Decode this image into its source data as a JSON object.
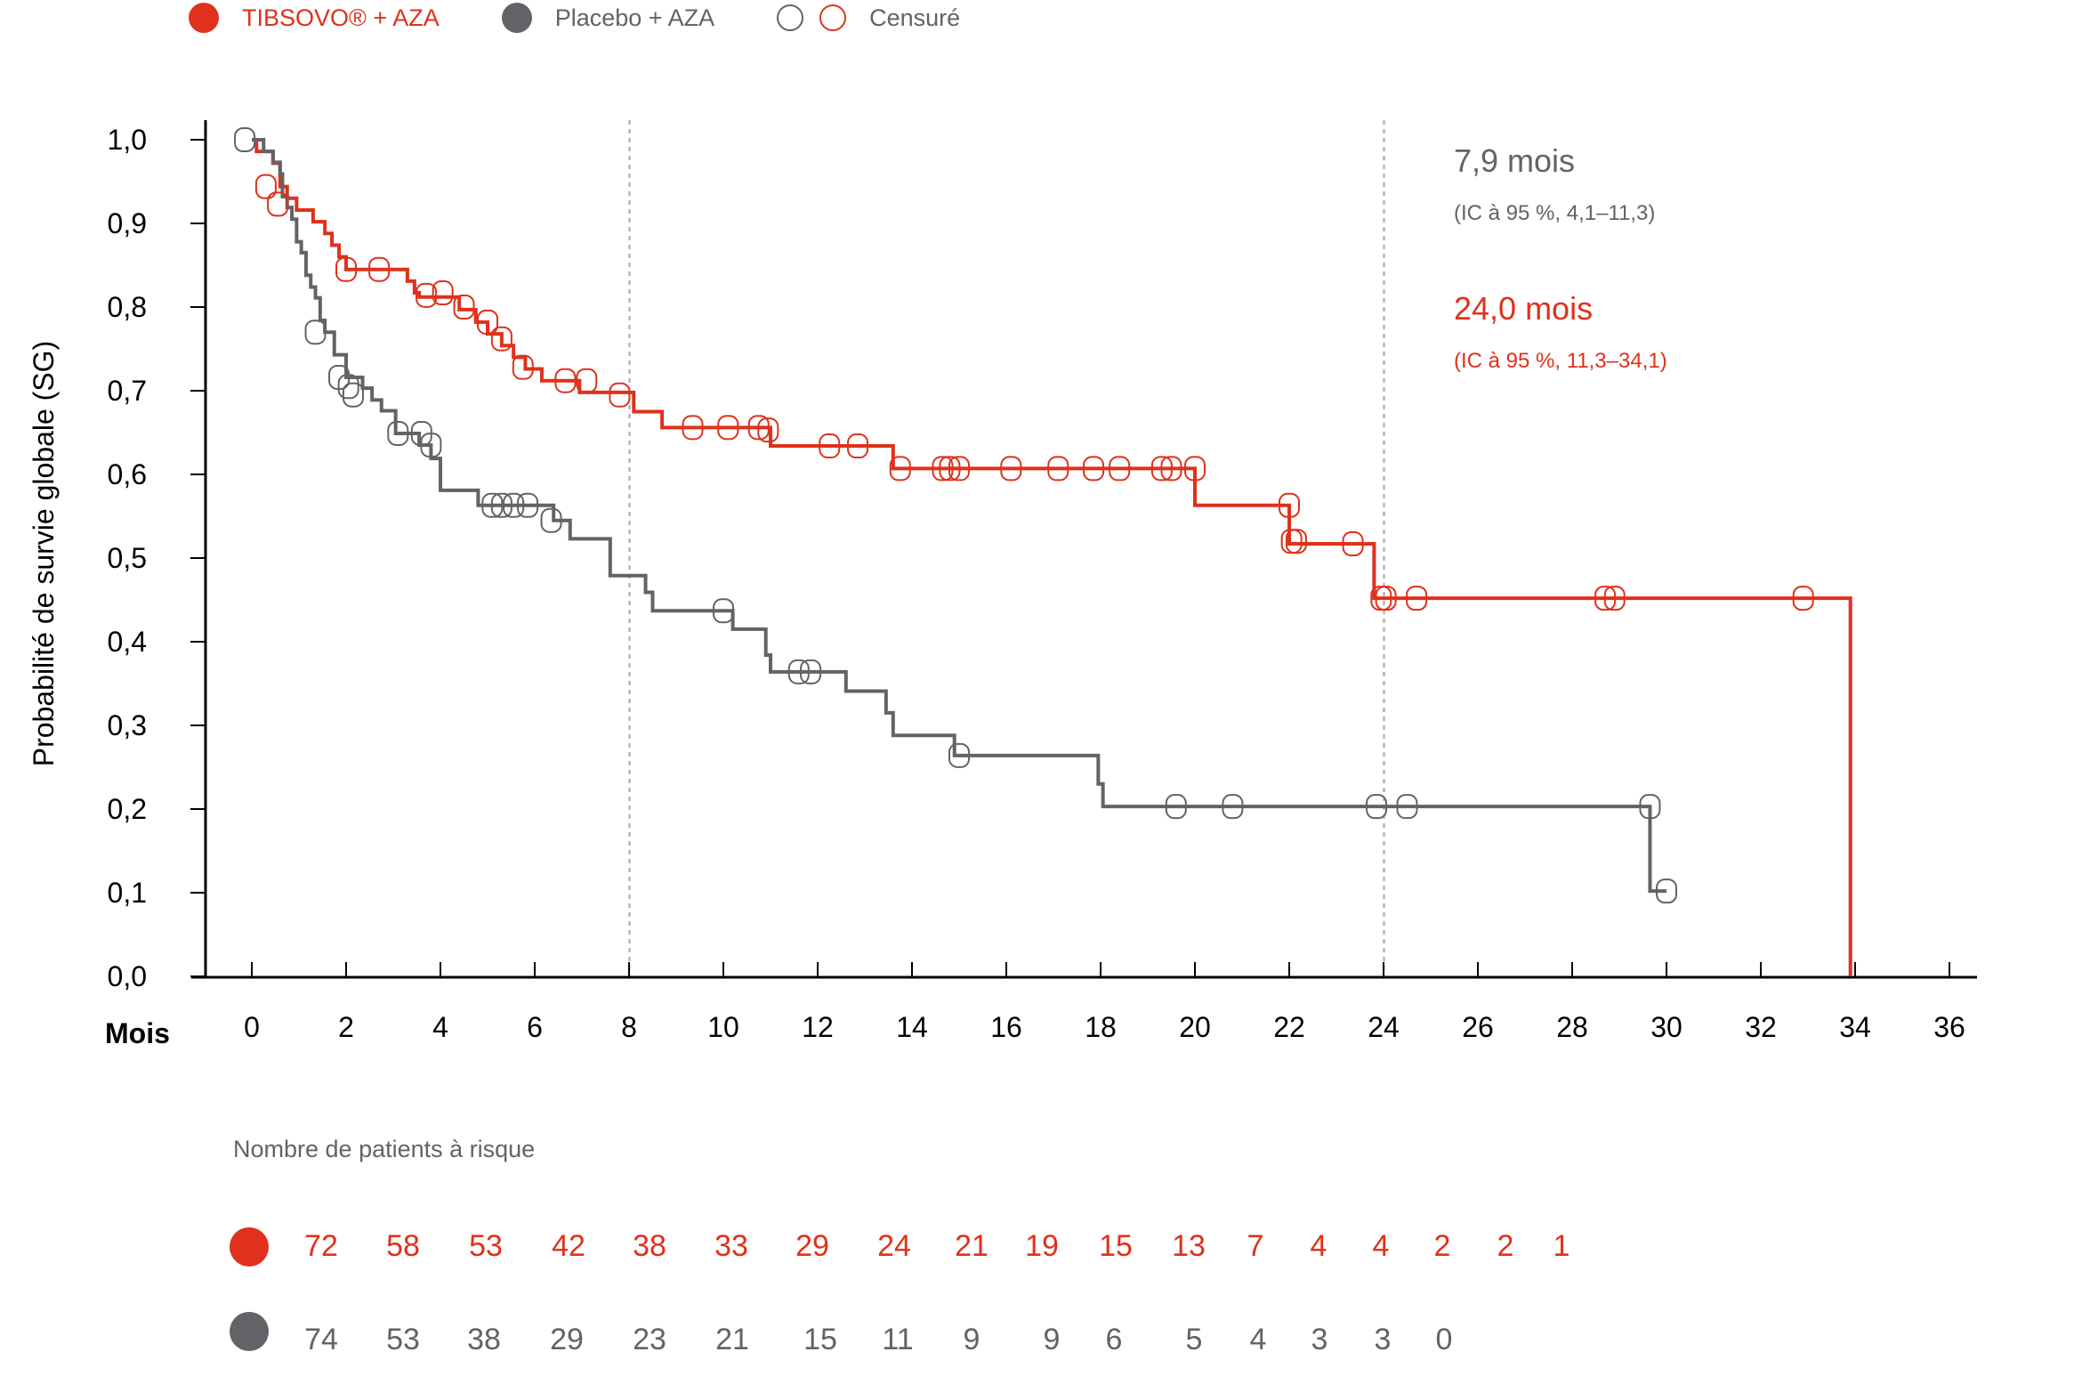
{
  "legend": {
    "tibsovo_label": "TIBSOVO® + AZA",
    "placebo_label": "Placebo + AZA",
    "censored_label": "Censuré"
  },
  "colors": {
    "tibsovo": "#DF311B",
    "placebo": "#626366",
    "axis": "#000000",
    "reference_line": "#A6A6A6"
  },
  "annotations": {
    "placebo_median": "7,9 mois",
    "placebo_ci": "(IC à 95 %, 4,1–11,3)",
    "tibsovo_median": "24,0 mois",
    "tibsovo_ci": "(IC à 95 %, 11,3–34,1)"
  },
  "risk_table": {
    "title": "Nombre de patients à risque",
    "tibsovo": [
      "72",
      "58",
      "53",
      "42",
      "38",
      "33",
      "29",
      "24",
      "21",
      "19",
      "15",
      "13",
      "7",
      "4",
      "4",
      "2",
      "2",
      "1"
    ],
    "placebo": [
      "74",
      "53",
      "38",
      "29",
      "23",
      "21",
      "15",
      "11",
      "9",
      "9",
      "6",
      "5",
      "4",
      "3",
      "3",
      "0"
    ]
  },
  "chart_data": {
    "type": "line",
    "subtype": "kaplan-meier-step",
    "title": "",
    "xlabel": "Mois",
    "ylabel": "Probabilité de survie globale (SG)",
    "xlim": [
      -1,
      36.5
    ],
    "ylim": [
      0,
      1
    ],
    "x_ticks": [
      0,
      2,
      4,
      6,
      8,
      10,
      12,
      14,
      16,
      18,
      20,
      22,
      24,
      26,
      28,
      30,
      32,
      34,
      36
    ],
    "x_tick_labels": [
      "0",
      "2",
      "4",
      "6",
      "8",
      "10",
      "12",
      "14",
      "16",
      "18",
      "20",
      "22",
      "24",
      "26",
      "28",
      "30",
      "32",
      "34",
      "36"
    ],
    "y_ticks": [
      0,
      0.1,
      0.2,
      0.3,
      0.4,
      0.5,
      0.6,
      0.7,
      0.8,
      0.9,
      1.0
    ],
    "y_tick_labels": [
      "0,0",
      "0,1",
      "0,2",
      "0,3",
      "0,4",
      "0,5",
      "0,6",
      "0,7",
      "0,8",
      "0,9",
      "1,0"
    ],
    "reference_lines_x": [
      7.9,
      24.0
    ],
    "grid": false,
    "legend_position": "top-left",
    "series": [
      {
        "name": "TIBSOVO® + AZA",
        "color": "#DF311B",
        "steps": [
          [
            0,
            1.0
          ],
          [
            0.1,
            0.986
          ],
          [
            0.45,
            0.972
          ],
          [
            0.6,
            0.944
          ],
          [
            0.75,
            0.93
          ],
          [
            0.95,
            0.916
          ],
          [
            1.3,
            0.902
          ],
          [
            1.55,
            0.888
          ],
          [
            1.7,
            0.874
          ],
          [
            1.85,
            0.86
          ],
          [
            2.0,
            0.845
          ],
          [
            3.3,
            0.831
          ],
          [
            3.45,
            0.817
          ],
          [
            3.55,
            0.812
          ],
          [
            4.4,
            0.797
          ],
          [
            4.75,
            0.782
          ],
          [
            5.0,
            0.768
          ],
          [
            5.3,
            0.754
          ],
          [
            5.55,
            0.74
          ],
          [
            5.8,
            0.726
          ],
          [
            6.15,
            0.712
          ],
          [
            6.95,
            0.698
          ],
          [
            8.1,
            0.675
          ],
          [
            8.7,
            0.656
          ],
          [
            11.0,
            0.634
          ],
          [
            13.6,
            0.607
          ],
          [
            20.0,
            0.563
          ],
          [
            22.0,
            0.517
          ],
          [
            23.8,
            0.452
          ],
          [
            33.9,
            0.0
          ]
        ],
        "censored": [
          [
            0.3,
            0.944
          ],
          [
            0.55,
            0.923
          ],
          [
            2.0,
            0.845
          ],
          [
            2.7,
            0.845
          ],
          [
            3.7,
            0.814
          ],
          [
            4.05,
            0.817
          ],
          [
            4.5,
            0.8
          ],
          [
            5.0,
            0.782
          ],
          [
            5.3,
            0.762
          ],
          [
            5.75,
            0.728
          ],
          [
            6.65,
            0.712
          ],
          [
            7.1,
            0.712
          ],
          [
            7.8,
            0.695
          ],
          [
            9.35,
            0.656
          ],
          [
            10.1,
            0.656
          ],
          [
            10.75,
            0.656
          ],
          [
            10.95,
            0.653
          ],
          [
            12.25,
            0.634
          ],
          [
            12.85,
            0.634
          ],
          [
            13.75,
            0.607
          ],
          [
            14.65,
            0.607
          ],
          [
            14.8,
            0.607
          ],
          [
            15.0,
            0.607
          ],
          [
            16.1,
            0.607
          ],
          [
            17.1,
            0.607
          ],
          [
            17.85,
            0.607
          ],
          [
            18.4,
            0.607
          ],
          [
            19.3,
            0.607
          ],
          [
            19.5,
            0.607
          ],
          [
            20.0,
            0.607
          ],
          [
            22.0,
            0.563
          ],
          [
            22.05,
            0.52
          ],
          [
            22.15,
            0.52
          ],
          [
            23.35,
            0.517
          ],
          [
            23.95,
            0.452
          ],
          [
            24.05,
            0.452
          ],
          [
            24.7,
            0.452
          ],
          [
            28.7,
            0.452
          ],
          [
            28.9,
            0.452
          ],
          [
            32.9,
            0.452
          ]
        ]
      },
      {
        "name": "Placebo + AZA",
        "color": "#626366",
        "steps": [
          [
            0,
            1.0
          ],
          [
            0.25,
            0.986
          ],
          [
            0.45,
            0.973
          ],
          [
            0.6,
            0.959
          ],
          [
            0.65,
            0.932
          ],
          [
            0.75,
            0.919
          ],
          [
            0.85,
            0.905
          ],
          [
            0.95,
            0.878
          ],
          [
            1.05,
            0.865
          ],
          [
            1.15,
            0.838
          ],
          [
            1.25,
            0.824
          ],
          [
            1.35,
            0.811
          ],
          [
            1.45,
            0.784
          ],
          [
            1.55,
            0.77
          ],
          [
            1.75,
            0.743
          ],
          [
            2.0,
            0.716
          ],
          [
            2.35,
            0.703
          ],
          [
            2.55,
            0.689
          ],
          [
            2.75,
            0.676
          ],
          [
            3.05,
            0.649
          ],
          [
            3.55,
            0.635
          ],
          [
            3.8,
            0.619
          ],
          [
            4.0,
            0.581
          ],
          [
            4.8,
            0.563
          ],
          [
            6.4,
            0.545
          ],
          [
            6.75,
            0.523
          ],
          [
            7.6,
            0.479
          ],
          [
            8.35,
            0.459
          ],
          [
            8.5,
            0.437
          ],
          [
            10.2,
            0.415
          ],
          [
            10.9,
            0.384
          ],
          [
            11.0,
            0.364
          ],
          [
            12.6,
            0.341
          ],
          [
            13.45,
            0.315
          ],
          [
            13.6,
            0.288
          ],
          [
            14.9,
            0.264
          ],
          [
            17.95,
            0.23
          ],
          [
            18.05,
            0.203
          ],
          [
            29.65,
            0.102
          ]
        ],
        "censored": [
          [
            -0.15,
            1.0
          ],
          [
            1.35,
            0.77
          ],
          [
            1.85,
            0.716
          ],
          [
            2.05,
            0.705
          ],
          [
            2.15,
            0.695
          ],
          [
            3.1,
            0.649
          ],
          [
            3.6,
            0.649
          ],
          [
            3.8,
            0.635
          ],
          [
            5.1,
            0.563
          ],
          [
            5.3,
            0.563
          ],
          [
            5.55,
            0.563
          ],
          [
            5.85,
            0.563
          ],
          [
            6.35,
            0.545
          ],
          [
            10.0,
            0.437
          ],
          [
            11.6,
            0.364
          ],
          [
            11.85,
            0.364
          ],
          [
            15.0,
            0.264
          ],
          [
            19.6,
            0.203
          ],
          [
            20.8,
            0.203
          ],
          [
            23.85,
            0.203
          ],
          [
            24.5,
            0.203
          ],
          [
            29.65,
            0.203
          ],
          [
            30.0,
            0.102
          ]
        ]
      }
    ]
  }
}
